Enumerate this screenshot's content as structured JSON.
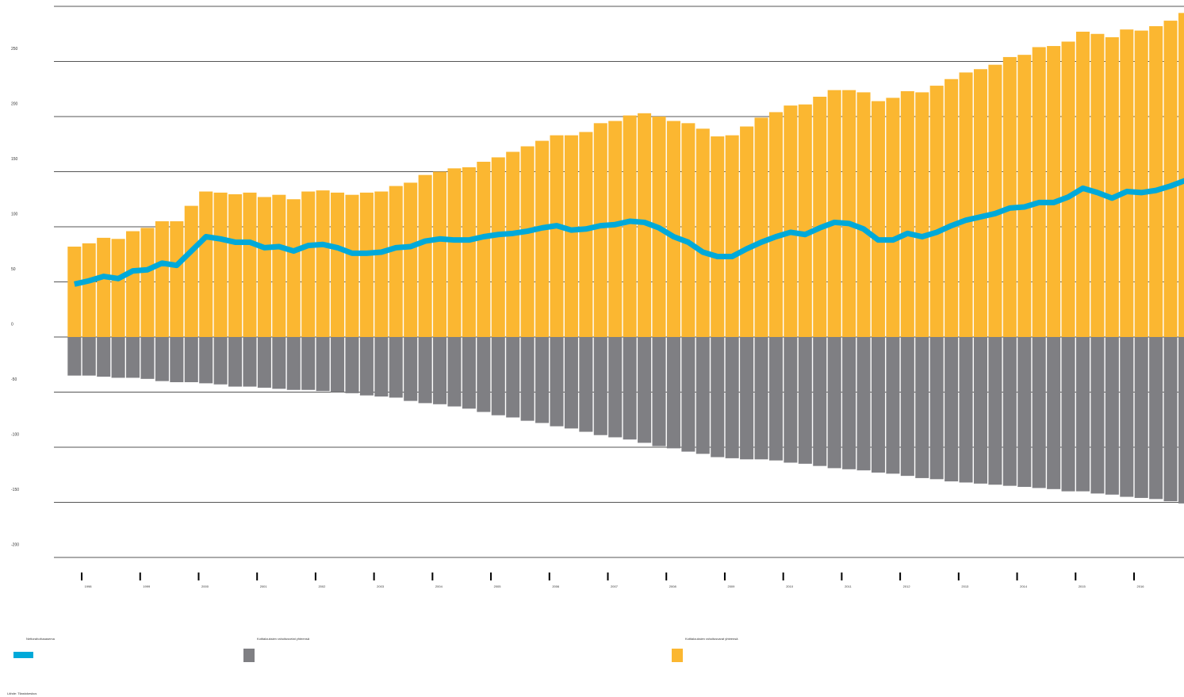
{
  "chart_data": {
    "type": "bar",
    "categories": [
      null,
      "1998",
      null,
      null,
      null,
      "1999",
      null,
      null,
      null,
      "2000",
      null,
      null,
      null,
      "2001",
      null,
      null,
      null,
      "2002",
      null,
      null,
      null,
      "2003",
      null,
      null,
      null,
      "2004",
      null,
      null,
      null,
      "2005",
      null,
      null,
      null,
      "2006",
      null,
      null,
      null,
      "2007",
      null,
      null,
      null,
      "2008",
      null,
      null,
      null,
      "2009",
      null,
      null,
      null,
      "2010",
      null,
      null,
      null,
      "2011",
      null,
      null,
      null,
      "2012",
      null,
      null,
      null,
      "2013",
      null,
      null,
      null,
      "2014",
      null,
      null,
      null,
      "2015",
      null,
      null,
      null,
      "2016",
      null,
      null,
      null
    ],
    "series": [
      {
        "name": "Nettorahoitusasema",
        "type": "line",
        "color": "#00a9d9",
        "values": [
          48,
          51,
          55,
          53,
          60,
          61,
          67,
          65,
          78,
          91,
          89,
          86,
          86,
          81,
          82,
          78,
          83,
          84,
          81,
          76,
          76,
          77,
          81,
          82,
          87,
          89,
          88,
          88,
          91,
          93,
          94,
          96,
          99,
          101,
          97,
          98,
          101,
          102,
          105,
          104,
          99,
          91,
          86,
          77,
          73,
          73,
          80,
          86,
          91,
          95,
          93,
          99,
          104,
          103,
          98,
          88,
          88,
          94,
          91,
          95,
          101,
          106,
          109,
          112,
          117,
          118,
          122,
          122,
          127,
          135,
          131,
          126,
          132,
          131,
          133,
          137,
          142
        ]
      },
      {
        "name": "Kotitalouksien rahoitusvelat yhteensä",
        "type": "bar",
        "color": "#7f7f83",
        "values": [
          -35,
          -35,
          -36,
          -37,
          -37,
          -38,
          -40,
          -41,
          -41,
          -42,
          -43,
          -45,
          -45,
          -46,
          -47,
          -48,
          -48,
          -49,
          -50,
          -51,
          -53,
          -54,
          -55,
          -58,
          -60,
          -61,
          -63,
          -65,
          -68,
          -71,
          -73,
          -76,
          -78,
          -81,
          -83,
          -86,
          -89,
          -91,
          -93,
          -96,
          -99,
          -101,
          -104,
          -106,
          -109,
          -110,
          -111,
          -111,
          -112,
          -114,
          -115,
          -117,
          -119,
          -120,
          -121,
          -123,
          -124,
          -126,
          -128,
          -129,
          -131,
          -132,
          -133,
          -134,
          -135,
          -136,
          -137,
          -138,
          -140,
          -140,
          -142,
          -143,
          -145,
          -146,
          -147,
          -149,
          -151
        ]
      },
      {
        "name": "Kotitalouksien rahoitusvarat yhteensä",
        "type": "bar",
        "color": "#fbb731",
        "values": [
          82,
          85,
          90,
          89,
          96,
          99,
          105,
          105,
          119,
          132,
          131,
          129.5,
          131,
          127,
          129,
          125,
          132,
          133,
          131,
          129,
          131,
          132,
          137,
          140,
          147,
          150,
          153,
          154,
          159,
          163,
          168,
          173,
          178,
          183,
          183,
          186,
          194,
          196,
          201,
          203,
          200,
          196,
          194,
          189,
          182,
          183,
          191,
          199,
          204,
          210,
          211,
          218,
          224,
          224,
          222,
          214,
          217,
          223,
          222,
          228,
          234,
          240,
          243,
          247,
          254,
          256,
          263,
          264,
          268,
          277,
          275,
          272,
          279,
          278,
          282,
          287,
          294
        ]
      }
    ],
    "ylim": [
      -200,
      300
    ],
    "yticks": [
      -200,
      -150,
      -100,
      -50,
      0,
      50,
      100,
      150,
      200,
      250
    ],
    "grid": true,
    "source": "Lähde: Tilastokeskus"
  }
}
